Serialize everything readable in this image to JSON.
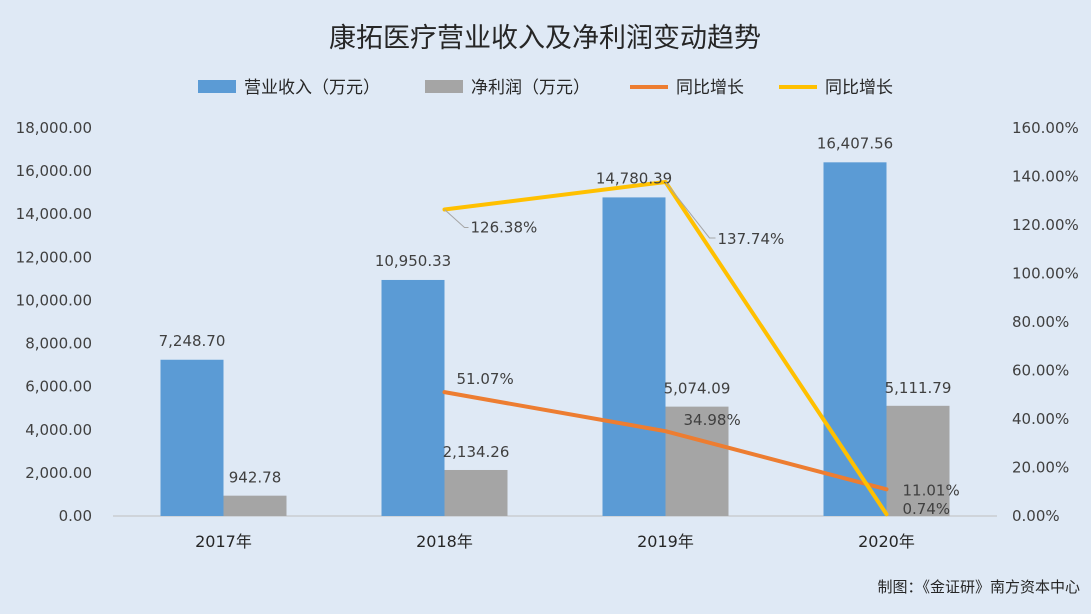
{
  "chart_data": {
    "type": "bar",
    "title": "康拓医疗营业收入及净利润变动趋势",
    "categories": [
      "2017年",
      "2018年",
      "2019年",
      "2020年"
    ],
    "series": [
      {
        "name": "营业收入（万元）",
        "kind": "bar",
        "axis": "left",
        "color": "#5b9bd5",
        "values": [
          7248.7,
          10950.33,
          14780.39,
          16407.56
        ],
        "labels": [
          "7,248.70",
          "10,950.33",
          "14,780.39",
          "16,407.56"
        ]
      },
      {
        "name": "净利润（万元）",
        "kind": "bar",
        "axis": "left",
        "color": "#a5a5a5",
        "values": [
          942.78,
          2134.26,
          5074.09,
          5111.79
        ],
        "labels": [
          "942.78",
          "2,134.26",
          "5,074.09",
          "5,111.79"
        ]
      },
      {
        "name": "同比增长",
        "kind": "line",
        "axis": "right",
        "color": "#ed7d31",
        "values": [
          null,
          51.07,
          34.98,
          11.01
        ],
        "labels": [
          "",
          "51.07%",
          "34.98%",
          "11.01%"
        ]
      },
      {
        "name": "同比增长",
        "kind": "line",
        "axis": "right",
        "color": "#ffc000",
        "values": [
          null,
          126.38,
          137.74,
          0.74
        ],
        "labels": [
          "",
          "126.38%",
          "137.74%",
          "0.74%"
        ]
      }
    ],
    "y_left": {
      "ylim": [
        0,
        18000
      ],
      "ticks": [
        "0.00",
        "2,000.00",
        "4,000.00",
        "6,000.00",
        "8,000.00",
        "10,000.00",
        "12,000.00",
        "14,000.00",
        "16,000.00",
        "18,000.00"
      ]
    },
    "y_right": {
      "ylim": [
        0,
        160
      ],
      "ticks": [
        "0.00%",
        "20.00%",
        "40.00%",
        "60.00%",
        "80.00%",
        "100.00%",
        "120.00%",
        "140.00%",
        "160.00%"
      ]
    },
    "grid": false,
    "legend_position": "top"
  },
  "credit": "制图：《金证研》南方资本中心"
}
